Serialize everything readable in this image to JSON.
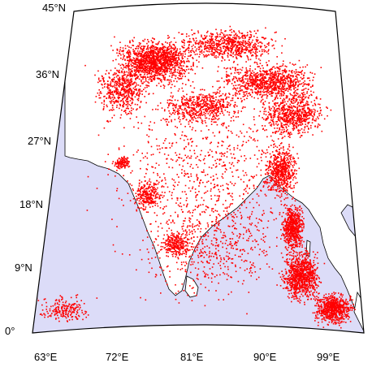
{
  "map": {
    "ocean_color": "#dcdcf8",
    "land_color": "#ffffff",
    "event_color": "#ff0000",
    "frame_color": "#000000",
    "lat_labels": [
      "45°N",
      "36°N",
      "27°N",
      "18°N",
      "9°N",
      "0°"
    ],
    "lon_labels": [
      "63°E",
      "72°E",
      "81°E",
      "90°E",
      "99°E"
    ]
  }
}
